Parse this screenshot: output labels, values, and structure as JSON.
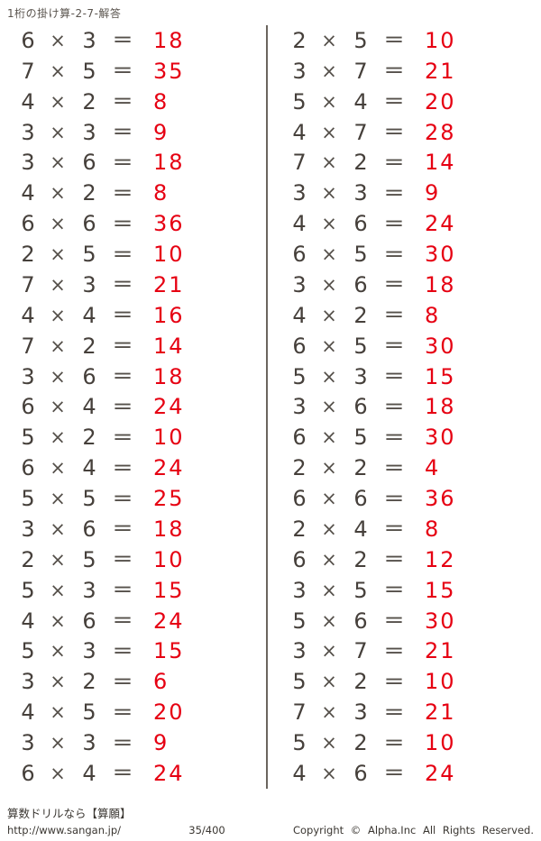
{
  "page": {
    "title": "1桁の掛け算-2-7-解答",
    "background_color": "#ffffff",
    "problem_color": "#46403b",
    "answer_color": "#e60012",
    "divider_color": "#6b655e"
  },
  "symbols": {
    "times": "×",
    "equals": "="
  },
  "columns": {
    "left": [
      {
        "a": 6,
        "b": 3,
        "ans": 18
      },
      {
        "a": 7,
        "b": 5,
        "ans": 35
      },
      {
        "a": 4,
        "b": 2,
        "ans": 8
      },
      {
        "a": 3,
        "b": 3,
        "ans": 9
      },
      {
        "a": 3,
        "b": 6,
        "ans": 18
      },
      {
        "a": 4,
        "b": 2,
        "ans": 8
      },
      {
        "a": 6,
        "b": 6,
        "ans": 36
      },
      {
        "a": 2,
        "b": 5,
        "ans": 10
      },
      {
        "a": 7,
        "b": 3,
        "ans": 21
      },
      {
        "a": 4,
        "b": 4,
        "ans": 16
      },
      {
        "a": 7,
        "b": 2,
        "ans": 14
      },
      {
        "a": 3,
        "b": 6,
        "ans": 18
      },
      {
        "a": 6,
        "b": 4,
        "ans": 24
      },
      {
        "a": 5,
        "b": 2,
        "ans": 10
      },
      {
        "a": 6,
        "b": 4,
        "ans": 24
      },
      {
        "a": 5,
        "b": 5,
        "ans": 25
      },
      {
        "a": 3,
        "b": 6,
        "ans": 18
      },
      {
        "a": 2,
        "b": 5,
        "ans": 10
      },
      {
        "a": 5,
        "b": 3,
        "ans": 15
      },
      {
        "a": 4,
        "b": 6,
        "ans": 24
      },
      {
        "a": 5,
        "b": 3,
        "ans": 15
      },
      {
        "a": 3,
        "b": 2,
        "ans": 6
      },
      {
        "a": 4,
        "b": 5,
        "ans": 20
      },
      {
        "a": 3,
        "b": 3,
        "ans": 9
      },
      {
        "a": 6,
        "b": 4,
        "ans": 24
      }
    ],
    "right": [
      {
        "a": 2,
        "b": 5,
        "ans": 10
      },
      {
        "a": 3,
        "b": 7,
        "ans": 21
      },
      {
        "a": 5,
        "b": 4,
        "ans": 20
      },
      {
        "a": 4,
        "b": 7,
        "ans": 28
      },
      {
        "a": 7,
        "b": 2,
        "ans": 14
      },
      {
        "a": 3,
        "b": 3,
        "ans": 9
      },
      {
        "a": 4,
        "b": 6,
        "ans": 24
      },
      {
        "a": 6,
        "b": 5,
        "ans": 30
      },
      {
        "a": 3,
        "b": 6,
        "ans": 18
      },
      {
        "a": 4,
        "b": 2,
        "ans": 8
      },
      {
        "a": 6,
        "b": 5,
        "ans": 30
      },
      {
        "a": 5,
        "b": 3,
        "ans": 15
      },
      {
        "a": 3,
        "b": 6,
        "ans": 18
      },
      {
        "a": 6,
        "b": 5,
        "ans": 30
      },
      {
        "a": 2,
        "b": 2,
        "ans": 4
      },
      {
        "a": 6,
        "b": 6,
        "ans": 36
      },
      {
        "a": 2,
        "b": 4,
        "ans": 8
      },
      {
        "a": 6,
        "b": 2,
        "ans": 12
      },
      {
        "a": 3,
        "b": 5,
        "ans": 15
      },
      {
        "a": 5,
        "b": 6,
        "ans": 30
      },
      {
        "a": 3,
        "b": 7,
        "ans": 21
      },
      {
        "a": 5,
        "b": 2,
        "ans": 10
      },
      {
        "a": 7,
        "b": 3,
        "ans": 21
      },
      {
        "a": 5,
        "b": 2,
        "ans": 10
      },
      {
        "a": 4,
        "b": 6,
        "ans": 24
      }
    ]
  },
  "footer": {
    "site_name": "算数ドリルなら【算願】",
    "site_url": "http://www.sangan.jp/",
    "page_number": "35/400",
    "copyright": "Copyright © Alpha.Inc All Rights Reserved."
  }
}
